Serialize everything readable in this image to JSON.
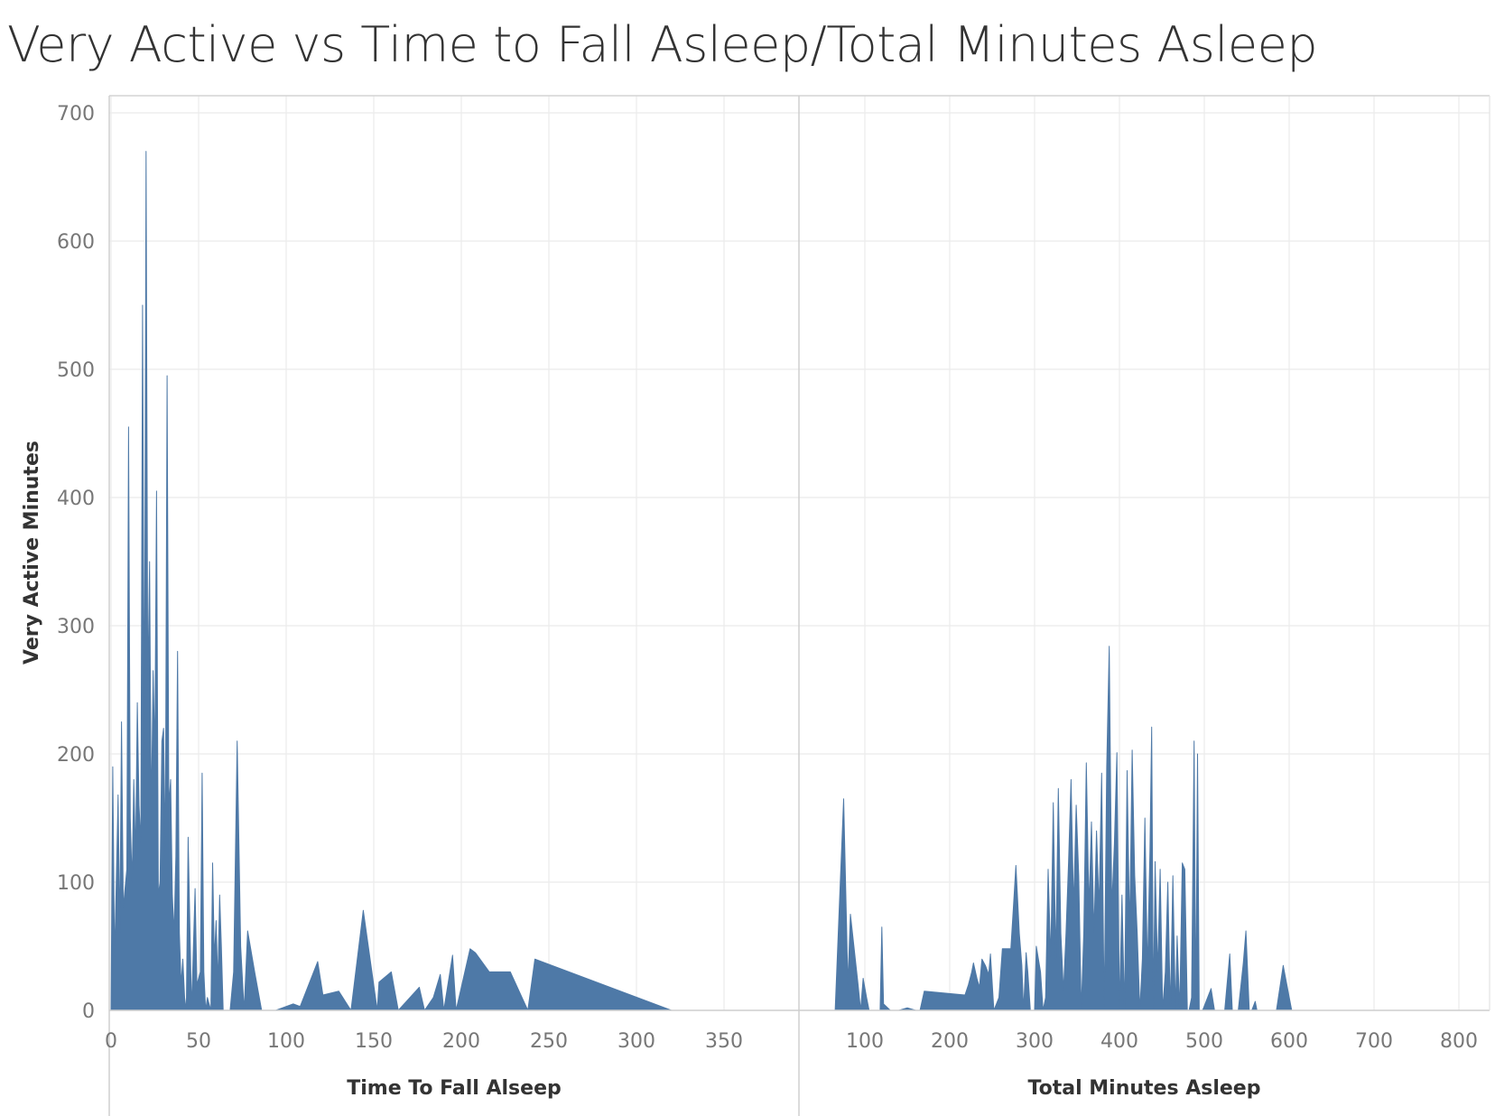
{
  "chart_data": {
    "type": "area",
    "title": "Very Active vs Time to Fall Asleep/Total Minutes Asleep",
    "ylabel": "Very Active Minutes",
    "ylim": [
      0,
      700
    ],
    "yticks": [
      0,
      100,
      200,
      300,
      400,
      500,
      600,
      700
    ],
    "color": "#4e79a7",
    "grid": true,
    "panels": [
      {
        "xlabel": "Time To Fall Alseep",
        "xlim": [
          0,
          388
        ],
        "xticks": [
          0,
          50,
          100,
          150,
          200,
          250,
          300,
          350
        ],
        "points": [
          [
            0,
            0
          ],
          [
            1,
            190
          ],
          [
            2,
            40
          ],
          [
            3,
            100
          ],
          [
            4,
            168
          ],
          [
            5,
            60
          ],
          [
            6,
            225
          ],
          [
            7,
            80
          ],
          [
            8,
            95
          ],
          [
            9,
            110
          ],
          [
            10,
            455
          ],
          [
            11,
            150
          ],
          [
            12,
            100
          ],
          [
            13,
            180
          ],
          [
            14,
            120
          ],
          [
            15,
            240
          ],
          [
            16,
            160
          ],
          [
            17,
            130
          ],
          [
            18,
            550
          ],
          [
            19,
            200
          ],
          [
            20,
            670
          ],
          [
            21,
            250
          ],
          [
            22,
            350
          ],
          [
            23,
            150
          ],
          [
            24,
            265
          ],
          [
            25,
            200
          ],
          [
            26,
            405
          ],
          [
            27,
            90
          ],
          [
            28,
            100
          ],
          [
            29,
            210
          ],
          [
            30,
            220
          ],
          [
            31,
            120
          ],
          [
            32,
            495
          ],
          [
            33,
            160
          ],
          [
            34,
            180
          ],
          [
            35,
            90
          ],
          [
            36,
            60
          ],
          [
            37,
            120
          ],
          [
            38,
            280
          ],
          [
            39,
            60
          ],
          [
            40,
            20
          ],
          [
            41,
            40
          ],
          [
            42,
            10
          ],
          [
            43,
            0
          ],
          [
            44,
            135
          ],
          [
            46,
            0
          ],
          [
            48,
            95
          ],
          [
            49,
            20
          ],
          [
            51,
            30
          ],
          [
            52,
            185
          ],
          [
            53,
            30
          ],
          [
            54,
            0
          ],
          [
            55,
            10
          ],
          [
            57,
            0
          ],
          [
            58,
            115
          ],
          [
            59,
            40
          ],
          [
            60,
            70
          ],
          [
            61,
            20
          ],
          [
            62,
            90
          ],
          [
            63,
            50
          ],
          [
            64,
            0
          ],
          [
            66,
            0
          ],
          [
            68,
            0
          ],
          [
            70,
            30
          ],
          [
            72,
            210
          ],
          [
            74,
            50
          ],
          [
            76,
            0
          ],
          [
            78,
            62
          ],
          [
            82,
            30
          ],
          [
            86,
            0
          ],
          [
            94,
            0
          ],
          [
            104,
            5
          ],
          [
            108,
            3
          ],
          [
            118,
            38
          ],
          [
            121,
            12
          ],
          [
            130,
            15
          ],
          [
            137,
            0
          ],
          [
            144,
            78
          ],
          [
            152,
            0
          ],
          [
            153,
            22
          ],
          [
            160,
            30
          ],
          [
            164,
            0
          ],
          [
            176,
            18
          ],
          [
            179,
            0
          ],
          [
            184,
            10
          ],
          [
            188,
            28
          ],
          [
            190,
            0
          ],
          [
            195,
            43
          ],
          [
            197,
            0
          ],
          [
            205,
            48
          ],
          [
            208,
            45
          ],
          [
            216,
            30
          ],
          [
            228,
            30
          ],
          [
            238,
            0
          ],
          [
            242,
            40
          ],
          [
            320,
            0
          ]
        ]
      },
      {
        "xlabel": "Total Minutes Asleep",
        "xlim": [
          25,
          832
        ],
        "xticks": [
          100,
          200,
          300,
          400,
          500,
          600,
          700,
          800
        ],
        "points": [
          [
            65,
            0
          ],
          [
            75,
            165
          ],
          [
            80,
            20
          ],
          [
            83,
            75
          ],
          [
            92,
            20
          ],
          [
            95,
            0
          ],
          [
            98,
            25
          ],
          [
            102,
            10
          ],
          [
            105,
            0
          ],
          [
            118,
            0
          ],
          [
            120,
            65
          ],
          [
            122,
            5
          ],
          [
            130,
            0
          ],
          [
            140,
            0
          ],
          [
            150,
            2
          ],
          [
            160,
            0
          ],
          [
            165,
            0
          ],
          [
            170,
            15
          ],
          [
            218,
            12
          ],
          [
            222,
            20
          ],
          [
            226,
            30
          ],
          [
            228,
            37
          ],
          [
            232,
            25
          ],
          [
            235,
            18
          ],
          [
            238,
            40
          ],
          [
            242,
            35
          ],
          [
            246,
            28
          ],
          [
            248,
            44
          ],
          [
            252,
            0
          ],
          [
            258,
            10
          ],
          [
            262,
            48
          ],
          [
            272,
            48
          ],
          [
            275,
            80
          ],
          [
            278,
            113
          ],
          [
            282,
            60
          ],
          [
            285,
            35
          ],
          [
            287,
            0
          ],
          [
            290,
            45
          ],
          [
            292,
            30
          ],
          [
            295,
            0
          ],
          [
            300,
            0
          ],
          [
            302,
            50
          ],
          [
            307,
            30
          ],
          [
            310,
            0
          ],
          [
            313,
            10
          ],
          [
            316,
            110
          ],
          [
            319,
            40
          ],
          [
            322,
            162
          ],
          [
            325,
            40
          ],
          [
            328,
            173
          ],
          [
            331,
            60
          ],
          [
            334,
            15
          ],
          [
            337,
            60
          ],
          [
            340,
            115
          ],
          [
            343,
            180
          ],
          [
            346,
            80
          ],
          [
            349,
            160
          ],
          [
            352,
            105
          ],
          [
            355,
            0
          ],
          [
            358,
            60
          ],
          [
            361,
            193
          ],
          [
            364,
            80
          ],
          [
            367,
            147
          ],
          [
            370,
            60
          ],
          [
            373,
            140
          ],
          [
            376,
            80
          ],
          [
            379,
            185
          ],
          [
            382,
            0
          ],
          [
            385,
            190
          ],
          [
            388,
            284
          ],
          [
            391,
            80
          ],
          [
            394,
            130
          ],
          [
            397,
            201
          ],
          [
            400,
            0
          ],
          [
            403,
            90
          ],
          [
            406,
            0
          ],
          [
            409,
            187
          ],
          [
            412,
            60
          ],
          [
            415,
            203
          ],
          [
            418,
            105
          ],
          [
            421,
            60
          ],
          [
            424,
            0
          ],
          [
            427,
            40
          ],
          [
            430,
            150
          ],
          [
            433,
            30
          ],
          [
            436,
            125
          ],
          [
            438,
            221
          ],
          [
            440,
            0
          ],
          [
            442,
            116
          ],
          [
            445,
            30
          ],
          [
            448,
            110
          ],
          [
            451,
            0
          ],
          [
            454,
            30
          ],
          [
            457,
            100
          ],
          [
            460,
            0
          ],
          [
            463,
            105
          ],
          [
            466,
            0
          ],
          [
            468,
            58
          ],
          [
            471,
            0
          ],
          [
            474,
            115
          ],
          [
            477,
            110
          ],
          [
            480,
            0
          ],
          [
            482,
            0
          ],
          [
            485,
            10
          ],
          [
            488,
            210
          ],
          [
            490,
            0
          ],
          [
            492,
            200
          ],
          [
            494,
            0
          ],
          [
            498,
            0
          ],
          [
            508,
            17
          ],
          [
            512,
            0
          ],
          [
            524,
            0
          ],
          [
            530,
            44
          ],
          [
            533,
            0
          ],
          [
            540,
            0
          ],
          [
            546,
            37
          ],
          [
            549,
            62
          ],
          [
            553,
            0
          ],
          [
            556,
            0
          ],
          [
            560,
            7
          ],
          [
            562,
            0
          ],
          [
            585,
            0
          ],
          [
            593,
            35
          ],
          [
            603,
            0
          ],
          [
            810,
            0
          ]
        ]
      }
    ]
  }
}
